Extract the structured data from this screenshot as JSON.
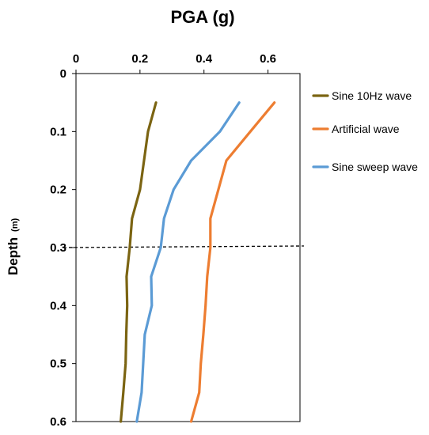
{
  "chart_data": {
    "type": "line",
    "title": "",
    "xlabel": "PGA (g)",
    "ylabel": "Depth",
    "ylabel_unit": "(m)",
    "xlim": [
      0,
      0.7
    ],
    "ylim": [
      0,
      0.6
    ],
    "x_axis_position": "top",
    "y_axis_inverted": true,
    "x_ticks": [
      0,
      0.2,
      0.4,
      0.6
    ],
    "x_tick_labels": [
      "0",
      "0.2",
      "0.4",
      "0.6"
    ],
    "y_ticks": [
      0,
      0.1,
      0.2,
      0.3,
      0.4,
      0.5,
      0.6
    ],
    "y_tick_labels": [
      "0",
      "0.1",
      "0.2",
      "0.3",
      "0.4",
      "0.5",
      "0.6"
    ],
    "grid": false,
    "legend_position": "right",
    "series": [
      {
        "name": "Sine 10Hz wave",
        "color": "#7B6412",
        "points": [
          {
            "x": 0.25,
            "y": 0.05
          },
          {
            "x": 0.225,
            "y": 0.1
          },
          {
            "x": 0.2,
            "y": 0.2
          },
          {
            "x": 0.175,
            "y": 0.25
          },
          {
            "x": 0.168,
            "y": 0.3
          },
          {
            "x": 0.158,
            "y": 0.35
          },
          {
            "x": 0.16,
            "y": 0.4
          },
          {
            "x": 0.157,
            "y": 0.45
          },
          {
            "x": 0.155,
            "y": 0.5
          },
          {
            "x": 0.148,
            "y": 0.55
          },
          {
            "x": 0.14,
            "y": 0.6
          }
        ]
      },
      {
        "name": "Artificial wave",
        "color": "#ED7D31",
        "points": [
          {
            "x": 0.62,
            "y": 0.05
          },
          {
            "x": 0.545,
            "y": 0.1
          },
          {
            "x": 0.47,
            "y": 0.15
          },
          {
            "x": 0.445,
            "y": 0.2
          },
          {
            "x": 0.42,
            "y": 0.25
          },
          {
            "x": 0.42,
            "y": 0.3
          },
          {
            "x": 0.41,
            "y": 0.35
          },
          {
            "x": 0.405,
            "y": 0.4
          },
          {
            "x": 0.398,
            "y": 0.45
          },
          {
            "x": 0.39,
            "y": 0.5
          },
          {
            "x": 0.385,
            "y": 0.55
          },
          {
            "x": 0.36,
            "y": 0.6
          }
        ]
      },
      {
        "name": "Sine sweep wave",
        "color": "#5B9BD5",
        "points": [
          {
            "x": 0.51,
            "y": 0.05
          },
          {
            "x": 0.45,
            "y": 0.1
          },
          {
            "x": 0.36,
            "y": 0.15
          },
          {
            "x": 0.305,
            "y": 0.2
          },
          {
            "x": 0.275,
            "y": 0.25
          },
          {
            "x": 0.265,
            "y": 0.3
          },
          {
            "x": 0.235,
            "y": 0.35
          },
          {
            "x": 0.237,
            "y": 0.4
          },
          {
            "x": 0.215,
            "y": 0.45
          },
          {
            "x": 0.21,
            "y": 0.5
          },
          {
            "x": 0.205,
            "y": 0.55
          },
          {
            "x": 0.19,
            "y": 0.6
          }
        ]
      }
    ],
    "reference_lines": [
      {
        "orientation": "horizontal",
        "y": 0.3,
        "style": "dashed",
        "color": "#000000"
      }
    ]
  }
}
